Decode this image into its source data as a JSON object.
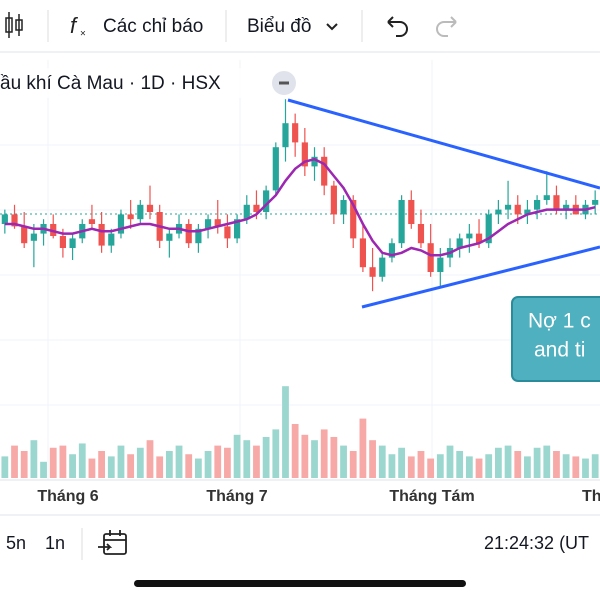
{
  "toolbar": {
    "indicators": "Các chỉ báo",
    "chart_menu": "Biểu đồ"
  },
  "header": {
    "title": "ầu khí Cà Mau · 1D · HSX"
  },
  "chart": {
    "type": "candlestick",
    "ylim": [
      0,
      100
    ],
    "volume_ylim": [
      0,
      100
    ],
    "candles": [
      [
        40,
        46,
        36,
        44
      ],
      [
        44,
        48,
        38,
        39
      ],
      [
        39,
        45,
        30,
        32
      ],
      [
        33,
        40,
        22,
        36
      ],
      [
        36,
        42,
        31,
        40
      ],
      [
        40,
        44,
        34,
        35
      ],
      [
        35,
        38,
        26,
        30
      ],
      [
        30,
        36,
        25,
        34
      ],
      [
        34,
        42,
        32,
        40
      ],
      [
        42,
        48,
        38,
        40
      ],
      [
        40,
        45,
        28,
        31
      ],
      [
        31,
        38,
        28,
        36
      ],
      [
        36,
        46,
        34,
        44
      ],
      [
        44,
        50,
        38,
        42
      ],
      [
        42,
        50,
        40,
        48
      ],
      [
        48,
        56,
        42,
        45
      ],
      [
        45,
        48,
        30,
        33
      ],
      [
        33,
        38,
        26,
        36
      ],
      [
        36,
        44,
        34,
        40
      ],
      [
        40,
        42,
        30,
        32
      ],
      [
        32,
        40,
        28,
        38
      ],
      [
        38,
        44,
        34,
        42
      ],
      [
        42,
        50,
        36,
        39
      ],
      [
        39,
        44,
        30,
        34
      ],
      [
        34,
        44,
        32,
        42
      ],
      [
        42,
        52,
        40,
        48
      ],
      [
        48,
        54,
        42,
        45
      ],
      [
        45,
        56,
        42,
        54
      ],
      [
        54,
        74,
        52,
        72
      ],
      [
        72,
        92,
        66,
        82
      ],
      [
        82,
        86,
        68,
        74
      ],
      [
        74,
        80,
        60,
        64
      ],
      [
        64,
        72,
        58,
        68
      ],
      [
        68,
        72,
        52,
        56
      ],
      [
        56,
        58,
        40,
        44
      ],
      [
        44,
        52,
        40,
        50
      ],
      [
        50,
        52,
        30,
        34
      ],
      [
        34,
        40,
        20,
        22
      ],
      [
        22,
        30,
        12,
        18
      ],
      [
        18,
        28,
        16,
        26
      ],
      [
        26,
        34,
        24,
        32
      ],
      [
        32,
        52,
        30,
        50
      ],
      [
        50,
        54,
        38,
        40
      ],
      [
        40,
        46,
        30,
        32
      ],
      [
        32,
        40,
        18,
        20
      ],
      [
        20,
        30,
        14,
        26
      ],
      [
        26,
        34,
        22,
        30
      ],
      [
        30,
        36,
        26,
        34
      ],
      [
        34,
        40,
        28,
        36
      ],
      [
        36,
        42,
        30,
        32
      ],
      [
        32,
        46,
        30,
        44
      ],
      [
        44,
        50,
        40,
        46
      ],
      [
        46,
        58,
        42,
        48
      ],
      [
        48,
        52,
        40,
        44
      ],
      [
        44,
        50,
        40,
        46
      ],
      [
        46,
        52,
        42,
        50
      ],
      [
        50,
        62,
        48,
        52
      ],
      [
        52,
        56,
        44,
        46
      ],
      [
        46,
        50,
        42,
        48
      ],
      [
        48,
        52,
        44,
        44
      ],
      [
        44,
        50,
        42,
        48
      ],
      [
        48,
        54,
        44,
        50
      ]
    ],
    "ma": [
      40,
      40,
      39,
      38,
      38,
      37,
      36,
      36,
      37,
      38,
      37,
      37,
      38,
      39,
      40,
      40,
      39,
      38,
      38,
      37,
      37,
      38,
      39,
      40,
      41,
      42,
      44,
      48,
      52,
      58,
      63,
      66,
      67,
      65,
      60,
      55,
      48,
      40,
      33,
      28,
      27,
      28,
      30,
      29,
      27,
      27,
      28,
      30,
      31,
      32,
      34,
      37,
      40,
      42,
      44,
      45,
      46,
      46,
      46,
      46,
      46,
      47
    ],
    "volumes": [
      20,
      30,
      25,
      35,
      15,
      28,
      30,
      22,
      32,
      18,
      25,
      20,
      30,
      22,
      28,
      35,
      20,
      25,
      30,
      22,
      18,
      25,
      30,
      28,
      40,
      35,
      30,
      38,
      45,
      85,
      50,
      40,
      35,
      45,
      38,
      30,
      25,
      55,
      35,
      30,
      22,
      28,
      20,
      25,
      18,
      22,
      30,
      25,
      20,
      18,
      22,
      28,
      30,
      25,
      20,
      28,
      30,
      25,
      22,
      20,
      18,
      22
    ],
    "x_labels": [
      "Tháng 6",
      "Tháng 7",
      "Tháng Tám",
      "Th"
    ],
    "callout": [
      "Nợ 1 c",
      "and ti"
    ]
  },
  "bottom_bar": {
    "ranges": [
      "5n",
      "1n"
    ],
    "clock": "21:24:32 (UT"
  }
}
